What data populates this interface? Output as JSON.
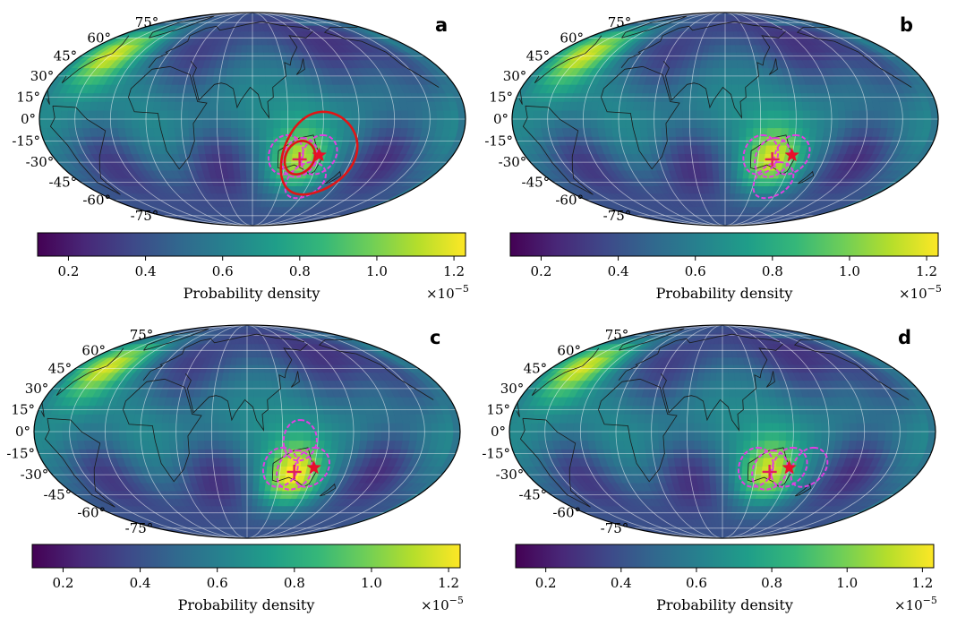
{
  "figure": {
    "description_type": "4-panel Mollweide sky/earth probability density maps",
    "colormap": "viridis",
    "colormap_stops": [
      "#440154",
      "#482878",
      "#3e4989",
      "#31688e",
      "#26828e",
      "#1f9e89",
      "#35b779",
      "#6ece58",
      "#b5de2b",
      "#fde725"
    ]
  },
  "chart_data": [
    {
      "type": "heatmap",
      "panel": "a",
      "projection": "mollweide",
      "latitude_ticks": [
        "75°",
        "60°",
        "45°",
        "30°",
        "15°",
        "0°",
        "-15°",
        "-30°",
        "-45°",
        "-60°",
        "-75°"
      ],
      "colorbar": {
        "label": "Probability density",
        "ticks": [
          "0.2",
          "0.4",
          "0.6",
          "0.8",
          "1.0",
          "1.2"
        ],
        "range": [
          0.12,
          1.23
        ],
        "scale": "×10",
        "scale_exp": "−5"
      },
      "markers": {
        "cross": {
          "lon": 133,
          "lat": -28
        },
        "star": {
          "lon": 150,
          "lat": -25
        }
      },
      "circles_dashed": [
        {
          "lon": 120,
          "lat": -25,
          "r_deg": 14,
          "color": "#e040e0"
        },
        {
          "lon": 133,
          "lat": -27,
          "r_deg": 14,
          "color": "#e040e0"
        },
        {
          "lon": 150,
          "lat": -25,
          "r_deg": 14,
          "color": "#e040e0"
        },
        {
          "lon": 145,
          "lat": -44,
          "r_deg": 14,
          "color": "#e040e0"
        }
      ],
      "circles_solid": [
        {
          "lon": 150,
          "lat": -25,
          "r_deg": 30,
          "color": "#e01515"
        },
        {
          "lon": 133,
          "lat": -27,
          "r_deg": 12,
          "color": "#e01515"
        }
      ],
      "hotspots": [
        {
          "lon": 133,
          "lat": -28,
          "value": 1.05
        },
        {
          "lon": -58,
          "lat": 48,
          "value": 1.2
        }
      ]
    },
    {
      "type": "heatmap",
      "panel": "b",
      "projection": "mollweide",
      "latitude_ticks": [
        "75°",
        "60°",
        "45°",
        "30°",
        "15°",
        "0°",
        "-15°",
        "-30°",
        "-45°",
        "-60°",
        "-75°"
      ],
      "colorbar": {
        "label": "Probability density",
        "ticks": [
          "0.2",
          "0.4",
          "0.6",
          "0.8",
          "1.0",
          "1.2"
        ],
        "range": [
          0.12,
          1.23
        ],
        "scale": "×10",
        "scale_exp": "−5"
      },
      "markers": {
        "cross": {
          "lon": 133,
          "lat": -28
        },
        "star": {
          "lon": 150,
          "lat": -25
        }
      },
      "circles_dashed": [
        {
          "lon": 122,
          "lat": -25,
          "r_deg": 14,
          "color": "#e040e0"
        },
        {
          "lon": 133,
          "lat": -27,
          "r_deg": 14,
          "color": "#e040e0"
        },
        {
          "lon": 150,
          "lat": -25,
          "r_deg": 14,
          "color": "#e040e0"
        },
        {
          "lon": 140,
          "lat": -44,
          "r_deg": 14,
          "color": "#e040e0"
        }
      ],
      "circles_solid": [],
      "hotspots": [
        {
          "lon": 133,
          "lat": -28,
          "value": 1.12
        },
        {
          "lon": -58,
          "lat": 48,
          "value": 1.2
        }
      ]
    },
    {
      "type": "heatmap",
      "panel": "c",
      "projection": "mollweide",
      "latitude_ticks": [
        "75°",
        "60°",
        "45°",
        "30°",
        "15°",
        "0°",
        "-15°",
        "-30°",
        "-45°",
        "-60°",
        "-75°"
      ],
      "colorbar": {
        "label": "Probability density",
        "ticks": [
          "0.2",
          "0.4",
          "0.6",
          "0.8",
          "1.0",
          "1.2"
        ],
        "range": [
          0.12,
          1.23
        ],
        "scale": "×10",
        "scale_exp": "−5"
      },
      "markers": {
        "cross": {
          "lon": 133,
          "lat": -28
        },
        "star": {
          "lon": 150,
          "lat": -25
        }
      },
      "circles_dashed": [
        {
          "lon": 120,
          "lat": -25,
          "r_deg": 14,
          "color": "#e040e0"
        },
        {
          "lon": 133,
          "lat": -27,
          "r_deg": 14,
          "color": "#e040e0"
        },
        {
          "lon": 148,
          "lat": -25,
          "r_deg": 14,
          "color": "#e040e0"
        },
        {
          "lon": 135,
          "lat": -6,
          "r_deg": 14,
          "color": "#e040e0"
        }
      ],
      "circles_solid": [],
      "hotspots": [
        {
          "lon": 133,
          "lat": -30,
          "value": 1.2
        },
        {
          "lon": -58,
          "lat": 48,
          "value": 1.2
        }
      ]
    },
    {
      "type": "heatmap",
      "panel": "d",
      "projection": "mollweide",
      "latitude_ticks": [
        "75°",
        "60°",
        "45°",
        "30°",
        "15°",
        "0°",
        "-15°",
        "-30°",
        "-45°",
        "-60°",
        "-75°"
      ],
      "colorbar": {
        "label": "Probability density",
        "ticks": [
          "0.2",
          "0.4",
          "0.6",
          "0.8",
          "1.0",
          "1.2"
        ],
        "range": [
          0.12,
          1.23
        ],
        "scale": "×10",
        "scale_exp": "−5"
      },
      "markers": {
        "cross": {
          "lon": 133,
          "lat": -28
        },
        "star": {
          "lon": 150,
          "lat": -25
        }
      },
      "circles_dashed": [
        {
          "lon": 120,
          "lat": -25,
          "r_deg": 14,
          "color": "#e040e0"
        },
        {
          "lon": 133,
          "lat": -27,
          "r_deg": 14,
          "color": "#e040e0"
        },
        {
          "lon": 150,
          "lat": -25,
          "r_deg": 14,
          "color": "#e040e0"
        },
        {
          "lon": 168,
          "lat": -25,
          "r_deg": 14,
          "color": "#e040e0"
        }
      ],
      "circles_solid": [],
      "hotspots": [
        {
          "lon": 133,
          "lat": -28,
          "value": 1.1
        },
        {
          "lon": -58,
          "lat": 48,
          "value": 1.2
        }
      ]
    }
  ]
}
